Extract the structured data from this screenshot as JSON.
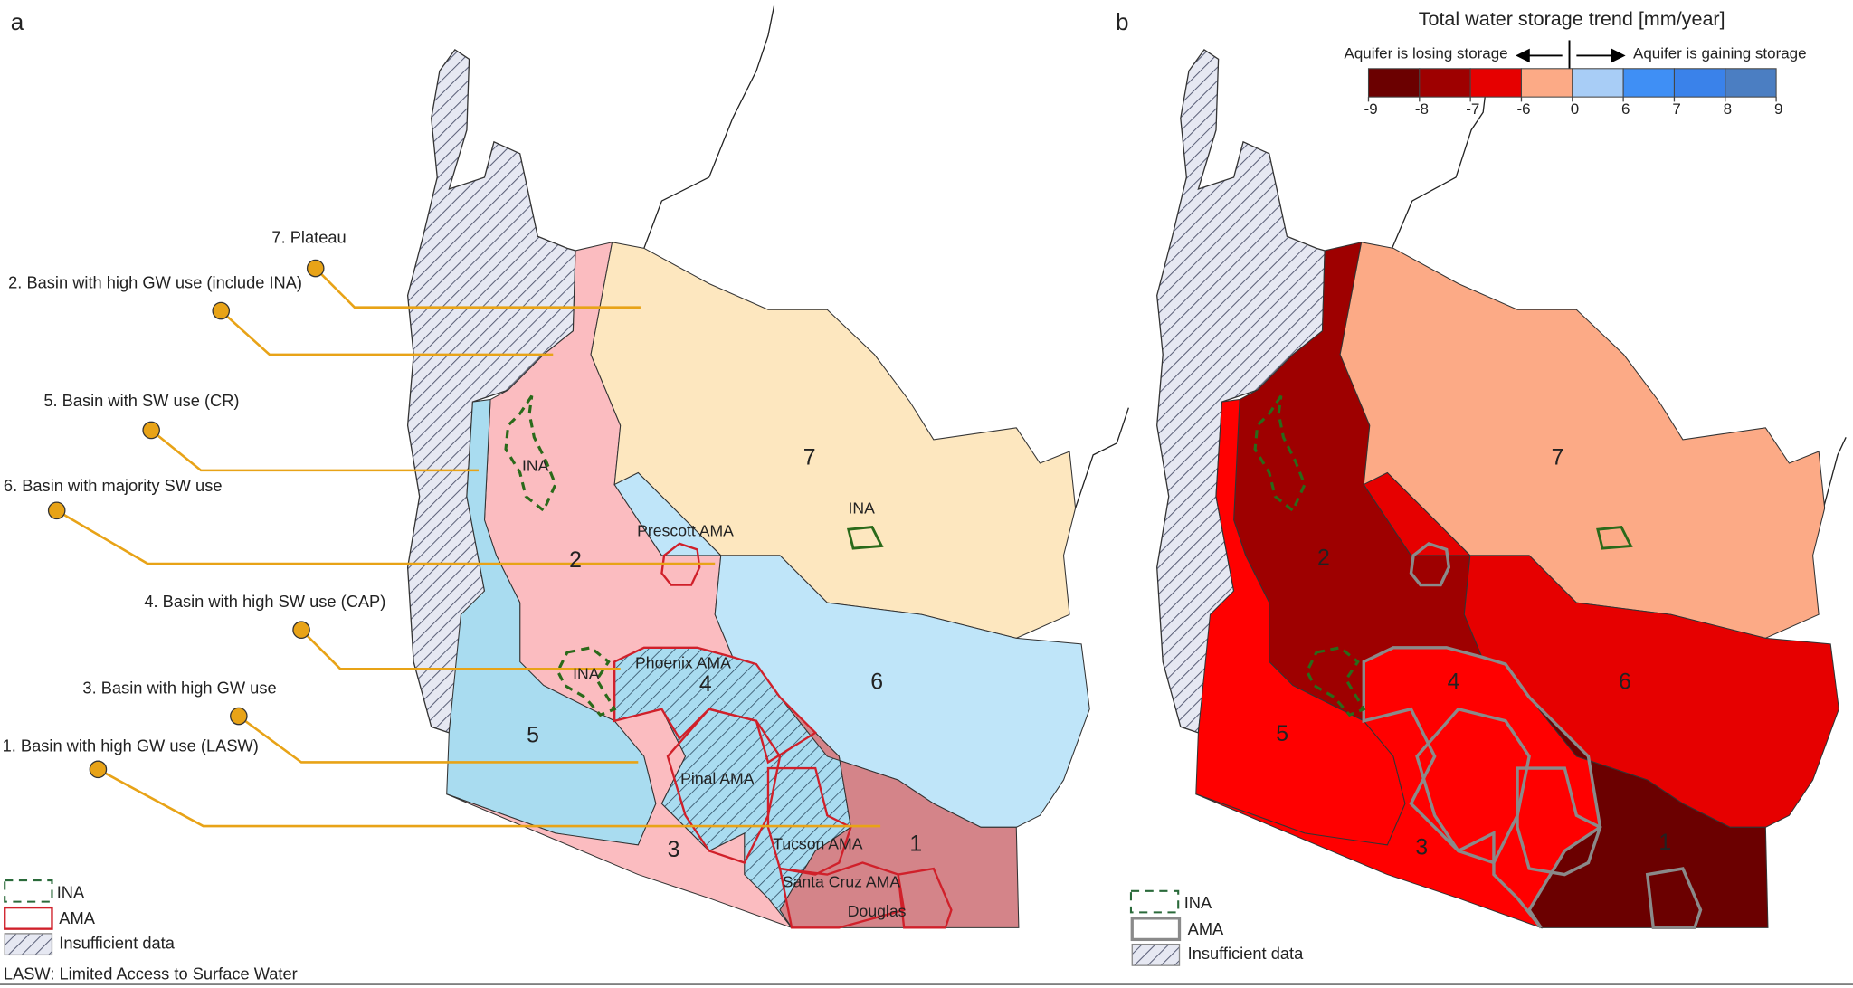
{
  "panel_a": {
    "label": "a",
    "callouts": [
      "7. Plateau",
      "2. Basin with high GW use (include INA)",
      "5. Basin with SW use (CR)",
      "6. Basin with majority SW use",
      "4. Basin with high SW use (CAP)",
      "3. Basin with high GW use",
      "1. Basin with high GW use (LASW)"
    ],
    "regions": [
      "7",
      "2",
      "6",
      "5",
      "4",
      "3",
      "1"
    ],
    "ama_labels": [
      "Prescott AMA",
      "Phoenix AMA",
      "Pinal AMA",
      "Tucson AMA",
      "Santa Cruz AMA",
      "Douglas"
    ],
    "ina_labels": [
      "INA",
      "INA",
      "INA"
    ],
    "legend": [
      "INA",
      "AMA",
      "Insufficient data"
    ],
    "footnote": "LASW: Limited Access to Surface Water"
  },
  "panel_b": {
    "label": "b",
    "regions": [
      "7",
      "2",
      "6",
      "5",
      "4",
      "3",
      "1"
    ],
    "legend": [
      "INA",
      "AMA",
      "Insufficient data"
    ],
    "colorbar": {
      "title": "Total water storage trend [mm/year]",
      "left_note": "Aquifer is losing storage",
      "right_note": "Aquifer is gaining storage",
      "ticks": [
        -9,
        -8,
        -7,
        -6,
        0,
        6,
        7,
        8,
        9
      ],
      "colors": [
        "#6b0000",
        "#9e0000",
        "#e60000",
        "#fcaa86",
        "#a8cdf6",
        "#3f8ff5",
        "#3a82ea",
        "#4b7ec2"
      ]
    }
  }
}
